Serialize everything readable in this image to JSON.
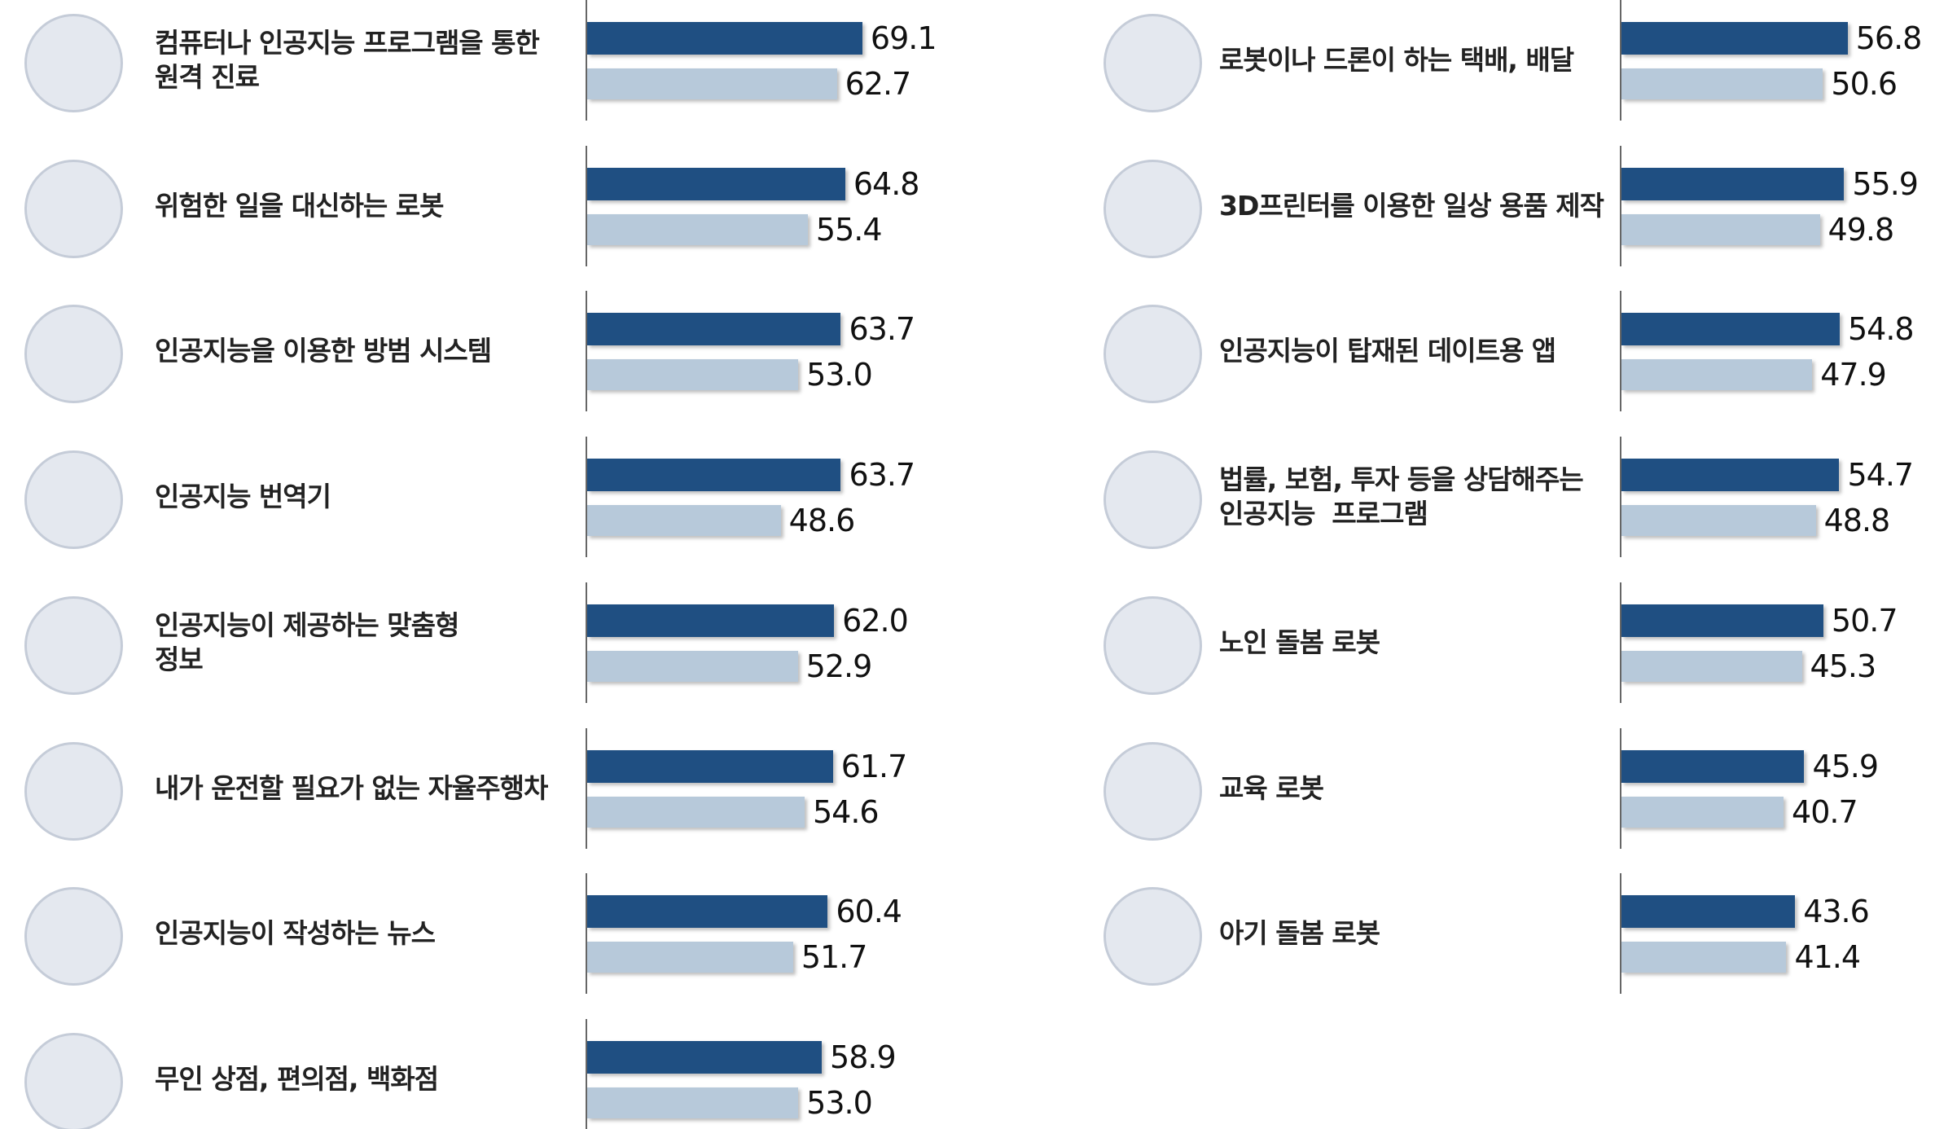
{
  "chart_data": [
    {
      "type": "bar",
      "orientation": "horizontal",
      "categories": [
        "컴퓨터나 인공지능 프로그램을 통한\n원격 진료",
        "위험한 일을 대신하는 로봇",
        "인공지능을 이용한 방범 시스템",
        "인공지능 번역기",
        "인공지능이 제공하는 맞춤형\n정보",
        "내가 운전할 필요가 없는 자율주행차",
        "인공지능이 작성하는 뉴스",
        "무인 상점, 편의점, 백화점"
      ],
      "series": [
        {
          "color": "#1f4f82",
          "values": [
            69.1,
            64.8,
            63.7,
            63.7,
            62.0,
            61.7,
            60.4,
            58.9
          ],
          "value_labels": [
            "69.1",
            "64.8",
            "63.7",
            "63.7",
            "62.0",
            "61.7",
            "60.4",
            "58.9"
          ]
        },
        {
          "color": "#b7c9da",
          "values": [
            62.7,
            55.4,
            53.0,
            48.6,
            52.9,
            54.6,
            51.7,
            53.0
          ],
          "value_labels": [
            "62.7",
            "55.4",
            "53.0",
            "48.6",
            "52.9",
            "54.6",
            "51.7",
            "53.0"
          ]
        }
      ]
    },
    {
      "type": "bar",
      "orientation": "horizontal",
      "categories": [
        "로봇이나 드론이 하는 택배, 배달",
        "3D프린터를 이용한 일상 용품 제작",
        "인공지능이 탑재된 데이트용 앱",
        "법률, 보험, 투자 등을 상담해주는\n인공지능  프로그램",
        "노인 돌봄 로봇",
        "교육 로봇",
        "아기 돌봄 로봇"
      ],
      "series": [
        {
          "color": "#1f4f82",
          "values": [
            56.8,
            55.9,
            54.8,
            54.7,
            50.7,
            45.9,
            43.6
          ],
          "value_labels": [
            "56.8",
            "55.9",
            "54.8",
            "54.7",
            "50.7",
            "45.9",
            "43.6"
          ]
        },
        {
          "color": "#b7c9da",
          "values": [
            50.6,
            49.8,
            47.9,
            48.8,
            45.3,
            40.7,
            41.4
          ],
          "value_labels": [
            "50.6",
            "49.8",
            "47.9",
            "48.8",
            "45.3",
            "40.7",
            "41.4"
          ]
        }
      ]
    }
  ]
}
